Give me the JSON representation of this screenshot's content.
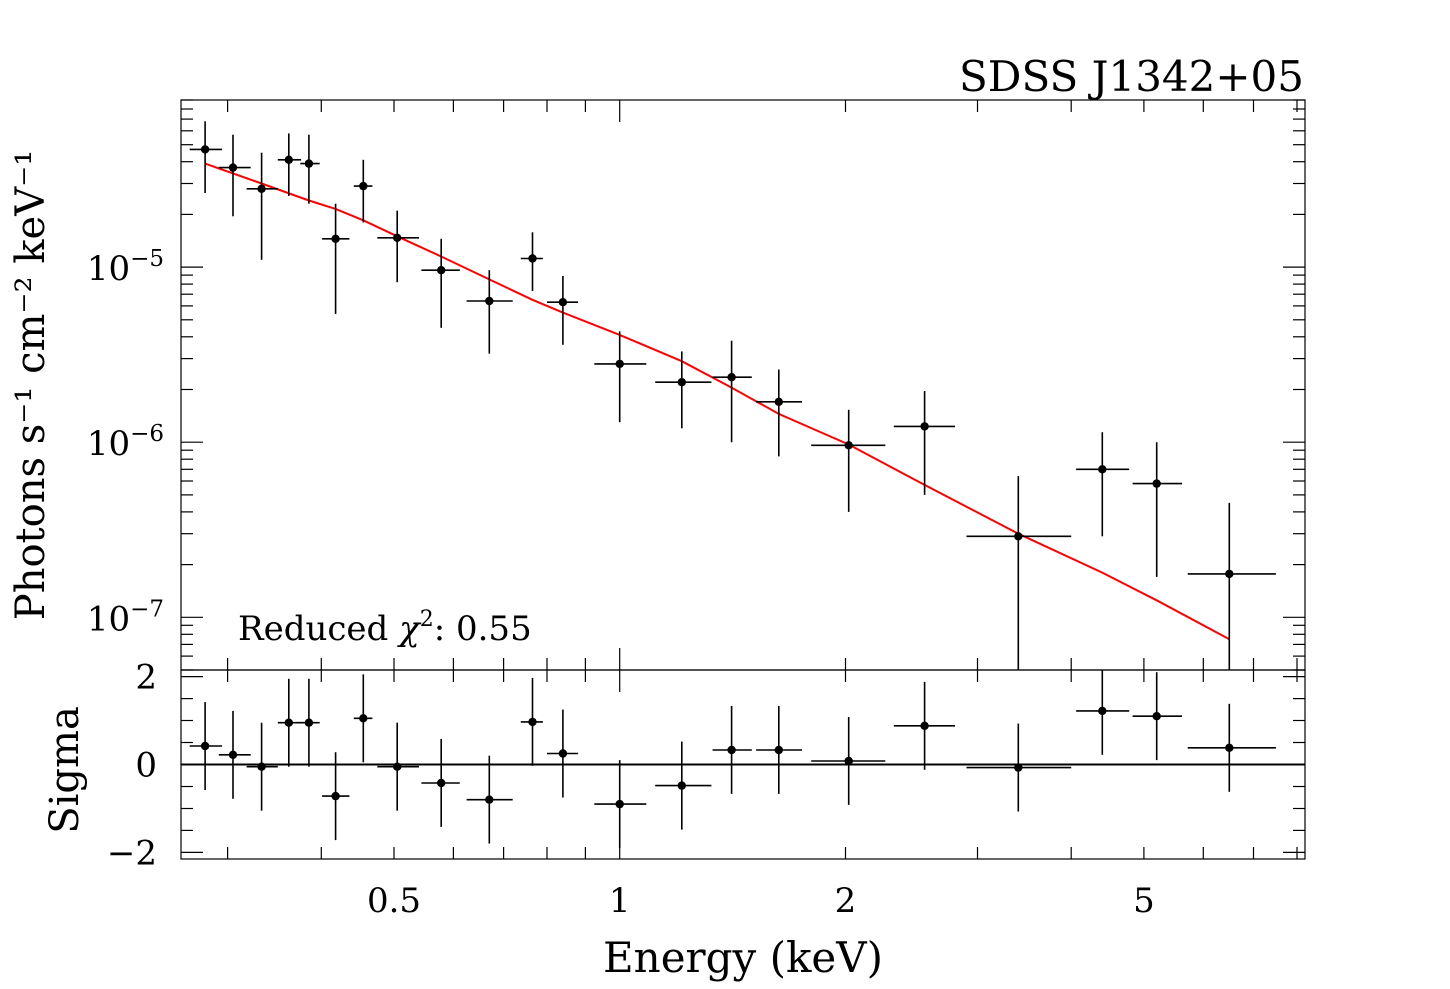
{
  "chart_data": [
    {
      "type": "scatter",
      "panel": "spectrum",
      "title": "SDSS J1342+05",
      "ylabel": "Photons s⁻¹ cm⁻² keV⁻¹",
      "xlabel": "",
      "xscale": "log",
      "yscale": "log",
      "xlim": [
        0.26,
        8.2
      ],
      "ylim": [
        5e-08,
        9e-05
      ],
      "yticks": [
        {
          "value": 1e-05,
          "base": "10",
          "exp": "−5"
        },
        {
          "value": 1e-06,
          "base": "10",
          "exp": "−6"
        },
        {
          "value": 1e-07,
          "base": "10",
          "exp": "−7"
        }
      ],
      "annotation": {
        "prefix": "Reduced ",
        "symbol": "χ",
        "sup": "2",
        "suffix": ": 0.55"
      },
      "grid": false,
      "series": [
        {
          "kind": "data",
          "color": "#000000",
          "points": [
            {
              "x": 0.28,
              "xlo": 0.267,
              "xhi": 0.295,
              "y": 4.7e-05,
              "ylo": 2.65e-05,
              "yhi": 6.8e-05
            },
            {
              "x": 0.305,
              "xlo": 0.292,
              "xhi": 0.322,
              "y": 3.7e-05,
              "ylo": 1.95e-05,
              "yhi": 5.7e-05
            },
            {
              "x": 0.333,
              "xlo": 0.318,
              "xhi": 0.35,
              "y": 2.8e-05,
              "ylo": 1.1e-05,
              "yhi": 4.5e-05
            },
            {
              "x": 0.362,
              "xlo": 0.35,
              "xhi": 0.376,
              "y": 4.1e-05,
              "ylo": 2.55e-05,
              "yhi": 5.8e-05
            },
            {
              "x": 0.385,
              "xlo": 0.375,
              "xhi": 0.398,
              "y": 3.9e-05,
              "ylo": 2.3e-05,
              "yhi": 5.7e-05
            },
            {
              "x": 0.418,
              "xlo": 0.401,
              "xhi": 0.436,
              "y": 1.45e-05,
              "ylo": 5.4e-06,
              "yhi": 2.3e-05
            },
            {
              "x": 0.455,
              "xlo": 0.442,
              "xhi": 0.468,
              "y": 2.9e-05,
              "ylo": 1.8e-05,
              "yhi": 4.1e-05
            },
            {
              "x": 0.505,
              "xlo": 0.475,
              "xhi": 0.54,
              "y": 1.47e-05,
              "ylo": 8.2e-06,
              "yhi": 2.1e-05
            },
            {
              "x": 0.578,
              "xlo": 0.544,
              "xhi": 0.612,
              "y": 9.6e-06,
              "ylo": 4.5e-06,
              "yhi": 1.45e-05
            },
            {
              "x": 0.67,
              "xlo": 0.625,
              "xhi": 0.72,
              "y": 6.4e-06,
              "ylo": 3.2e-06,
              "yhi": 9.6e-06
            },
            {
              "x": 0.765,
              "xlo": 0.738,
              "xhi": 0.79,
              "y": 1.12e-05,
              "ylo": 7.3e-06,
              "yhi": 1.58e-05
            },
            {
              "x": 0.84,
              "xlo": 0.8,
              "xhi": 0.88,
              "y": 6.3e-06,
              "ylo": 3.6e-06,
              "yhi": 8.9e-06
            },
            {
              "x": 1.0,
              "xlo": 0.925,
              "xhi": 1.085,
              "y": 2.8e-06,
              "ylo": 1.3e-06,
              "yhi": 4.3e-06
            },
            {
              "x": 1.21,
              "xlo": 1.115,
              "xhi": 1.325,
              "y": 2.2e-06,
              "ylo": 1.2e-06,
              "yhi": 3.3e-06
            },
            {
              "x": 1.41,
              "xlo": 1.33,
              "xhi": 1.5,
              "y": 2.35e-06,
              "ylo": 1e-06,
              "yhi": 3.8e-06
            },
            {
              "x": 1.63,
              "xlo": 1.52,
              "xhi": 1.75,
              "y": 1.7e-06,
              "ylo": 8.3e-07,
              "yhi": 2.6e-06
            },
            {
              "x": 2.02,
              "xlo": 1.8,
              "xhi": 2.26,
              "y": 9.6e-07,
              "ylo": 4e-07,
              "yhi": 1.53e-06
            },
            {
              "x": 2.55,
              "xlo": 2.32,
              "xhi": 2.8,
              "y": 1.23e-06,
              "ylo": 5e-07,
              "yhi": 1.96e-06
            },
            {
              "x": 3.4,
              "xlo": 2.9,
              "xhi": 4.0,
              "y": 2.9e-07,
              "ylo": 4e-08,
              "yhi": 6.4e-07
            },
            {
              "x": 4.4,
              "xlo": 4.06,
              "xhi": 4.78,
              "y": 7e-07,
              "ylo": 2.9e-07,
              "yhi": 1.14e-06
            },
            {
              "x": 5.2,
              "xlo": 4.83,
              "xhi": 5.62,
              "y": 5.8e-07,
              "ylo": 1.7e-07,
              "yhi": 1e-06
            },
            {
              "x": 6.5,
              "xlo": 5.72,
              "xhi": 7.5,
              "y": 1.77e-07,
              "ylo": 4e-08,
              "yhi": 4.5e-07
            }
          ]
        },
        {
          "kind": "model",
          "color": "#ff0000",
          "points": [
            {
              "x": 0.28,
              "y": 3.9e-05
            },
            {
              "x": 0.333,
              "y": 3e-05
            },
            {
              "x": 0.385,
              "y": 2.4e-05
            },
            {
              "x": 0.418,
              "y": 2.15e-05
            },
            {
              "x": 0.455,
              "y": 1.85e-05
            },
            {
              "x": 0.505,
              "y": 1.5e-05
            },
            {
              "x": 0.578,
              "y": 1.15e-05
            },
            {
              "x": 0.67,
              "y": 8.5e-06
            },
            {
              "x": 0.765,
              "y": 6.5e-06
            },
            {
              "x": 0.84,
              "y": 5.5e-06
            },
            {
              "x": 1.0,
              "y": 4.1e-06
            },
            {
              "x": 1.21,
              "y": 2.9e-06
            },
            {
              "x": 1.41,
              "y": 2.05e-06
            },
            {
              "x": 1.63,
              "y": 1.45e-06
            },
            {
              "x": 2.02,
              "y": 9.7e-07
            },
            {
              "x": 2.55,
              "y": 5.7e-07
            },
            {
              "x": 3.4,
              "y": 3e-07
            },
            {
              "x": 4.4,
              "y": 1.8e-07
            },
            {
              "x": 5.2,
              "y": 1.25e-07
            },
            {
              "x": 6.5,
              "y": 7.5e-08
            }
          ]
        }
      ]
    },
    {
      "type": "scatter",
      "panel": "residuals",
      "xlabel": "Energy (keV)",
      "ylabel": "Sigma",
      "xscale": "log",
      "xlim": [
        0.26,
        8.2
      ],
      "ylim": [
        -2.15,
        2.15
      ],
      "xticks": [
        {
          "value": 0.5,
          "label": "0.5"
        },
        {
          "value": 1,
          "label": "1"
        },
        {
          "value": 2,
          "label": "2"
        },
        {
          "value": 5,
          "label": "5"
        }
      ],
      "yticks": [
        {
          "value": 2,
          "label": "2"
        },
        {
          "value": 0,
          "label": "0"
        },
        {
          "value": -2,
          "label": "−2"
        }
      ],
      "zero_line": 0,
      "grid": false,
      "series": [
        {
          "kind": "residuals",
          "color": "#000000",
          "points": [
            {
              "x": 0.28,
              "xlo": 0.267,
              "xhi": 0.295,
              "y": 0.42,
              "ylo": -0.58,
              "yhi": 1.42
            },
            {
              "x": 0.305,
              "xlo": 0.292,
              "xhi": 0.322,
              "y": 0.22,
              "ylo": -0.78,
              "yhi": 1.22
            },
            {
              "x": 0.333,
              "xlo": 0.318,
              "xhi": 0.35,
              "y": -0.05,
              "ylo": -1.05,
              "yhi": 0.95
            },
            {
              "x": 0.362,
              "xlo": 0.35,
              "xhi": 0.376,
              "y": 0.95,
              "ylo": -0.05,
              "yhi": 1.95
            },
            {
              "x": 0.385,
              "xlo": 0.375,
              "xhi": 0.398,
              "y": 0.95,
              "ylo": -0.05,
              "yhi": 1.95
            },
            {
              "x": 0.418,
              "xlo": 0.401,
              "xhi": 0.436,
              "y": -0.72,
              "ylo": -1.72,
              "yhi": 0.28
            },
            {
              "x": 0.455,
              "xlo": 0.442,
              "xhi": 0.468,
              "y": 1.05,
              "ylo": 0.05,
              "yhi": 2.05
            },
            {
              "x": 0.505,
              "xlo": 0.475,
              "xhi": 0.54,
              "y": -0.05,
              "ylo": -1.05,
              "yhi": 0.95
            },
            {
              "x": 0.578,
              "xlo": 0.544,
              "xhi": 0.612,
              "y": -0.42,
              "ylo": -1.42,
              "yhi": 0.58
            },
            {
              "x": 0.67,
              "xlo": 0.625,
              "xhi": 0.72,
              "y": -0.8,
              "ylo": -1.8,
              "yhi": 0.2
            },
            {
              "x": 0.765,
              "xlo": 0.738,
              "xhi": 0.79,
              "y": 0.97,
              "ylo": -0.03,
              "yhi": 1.97
            },
            {
              "x": 0.84,
              "xlo": 0.8,
              "xhi": 0.88,
              "y": 0.25,
              "ylo": -0.75,
              "yhi": 1.25
            },
            {
              "x": 1.0,
              "xlo": 0.925,
              "xhi": 1.085,
              "y": -0.9,
              "ylo": -1.9,
              "yhi": 0.1
            },
            {
              "x": 1.21,
              "xlo": 1.115,
              "xhi": 1.325,
              "y": -0.48,
              "ylo": -1.48,
              "yhi": 0.52
            },
            {
              "x": 1.41,
              "xlo": 1.33,
              "xhi": 1.5,
              "y": 0.33,
              "ylo": -0.67,
              "yhi": 1.33
            },
            {
              "x": 1.63,
              "xlo": 1.52,
              "xhi": 1.75,
              "y": 0.33,
              "ylo": -0.67,
              "yhi": 1.33
            },
            {
              "x": 2.02,
              "xlo": 1.8,
              "xhi": 2.26,
              "y": 0.08,
              "ylo": -0.92,
              "yhi": 1.08
            },
            {
              "x": 2.55,
              "xlo": 2.32,
              "xhi": 2.8,
              "y": 0.88,
              "ylo": -0.12,
              "yhi": 1.88
            },
            {
              "x": 3.4,
              "xlo": 2.9,
              "xhi": 4.0,
              "y": -0.07,
              "ylo": -1.07,
              "yhi": 0.93
            },
            {
              "x": 4.4,
              "xlo": 4.06,
              "xhi": 4.78,
              "y": 1.22,
              "ylo": 0.22,
              "yhi": 2.22
            },
            {
              "x": 5.2,
              "xlo": 4.83,
              "xhi": 5.62,
              "y": 1.1,
              "ylo": 0.1,
              "yhi": 2.1
            },
            {
              "x": 6.5,
              "xlo": 5.72,
              "xhi": 7.5,
              "y": 0.38,
              "ylo": -0.62,
              "yhi": 1.38
            }
          ]
        }
      ]
    }
  ]
}
